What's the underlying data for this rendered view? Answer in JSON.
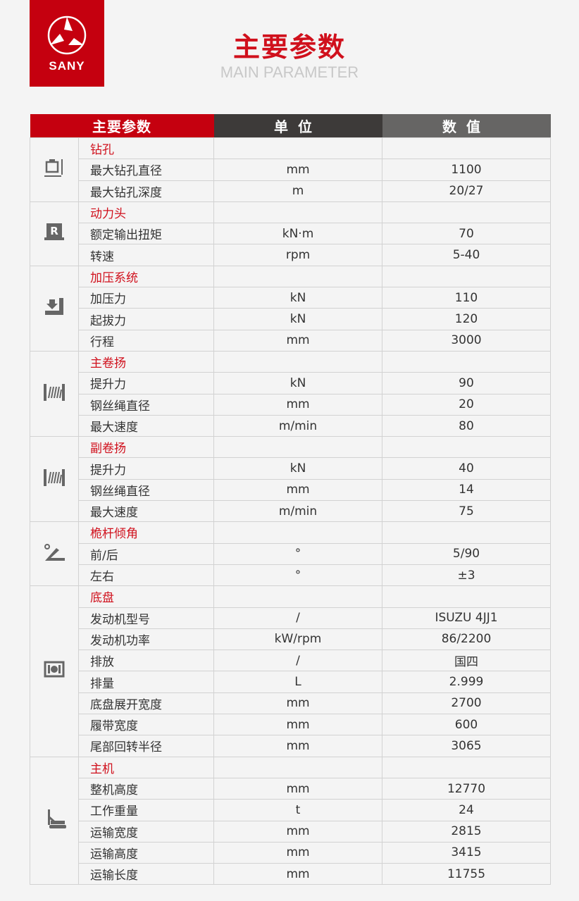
{
  "logo": {
    "brand": "SANY"
  },
  "header": {
    "title": "主要参数",
    "subtitle": "MAIN PARAMETER"
  },
  "table": {
    "columns": [
      "主要参数",
      "单位",
      "数值"
    ],
    "groups": [
      {
        "title": "钻孔",
        "icon": "drill-hole-icon",
        "rows": [
          [
            "最大钻孔直径",
            "mm",
            "1100"
          ],
          [
            "最大钻孔深度",
            "m",
            "20/27"
          ]
        ]
      },
      {
        "title": "动力头",
        "icon": "power-head-icon",
        "rows": [
          [
            "额定输出扭矩",
            "kN·m",
            "70"
          ],
          [
            "转速",
            "rpm",
            "5-40"
          ]
        ]
      },
      {
        "title": "加压系统",
        "icon": "pressure-system-icon",
        "rows": [
          [
            "加压力",
            "kN",
            "110"
          ],
          [
            "起拔力",
            "kN",
            "120"
          ],
          [
            "行程",
            "mm",
            "3000"
          ]
        ]
      },
      {
        "title": "主卷扬",
        "icon": "winch-icon",
        "rows": [
          [
            "提升力",
            "kN",
            "90"
          ],
          [
            "钢丝绳直径",
            "mm",
            "20"
          ],
          [
            "最大速度",
            "m/min",
            "80"
          ]
        ]
      },
      {
        "title": "副卷扬",
        "icon": "winch-icon",
        "rows": [
          [
            "提升力",
            "kN",
            "40"
          ],
          [
            "钢丝绳直径",
            "mm",
            "14"
          ],
          [
            "最大速度",
            "m/min",
            "75"
          ]
        ]
      },
      {
        "title": "桅杆倾角",
        "icon": "mast-angle-icon",
        "rows": [
          [
            "前/后",
            "°",
            "5/90"
          ],
          [
            "左右",
            "°",
            "±3"
          ]
        ]
      },
      {
        "title": "底盘",
        "icon": "engine-icon",
        "rows": [
          [
            "发动机型号",
            "/",
            "ISUZU 4JJ1"
          ],
          [
            "发动机功率",
            "kW/rpm",
            "86/2200"
          ],
          [
            "排放",
            "/",
            "国四"
          ],
          [
            "排量",
            "L",
            "2.999"
          ],
          [
            "底盘展开宽度",
            "mm",
            "2700"
          ],
          [
            "履带宽度",
            "mm",
            "600"
          ],
          [
            "尾部回转半径",
            "mm",
            "3065"
          ]
        ]
      },
      {
        "title": "主机",
        "icon": "drilling-rig-icon",
        "rows": [
          [
            "整机高度",
            "mm",
            "12770"
          ],
          [
            "工作重量",
            "t",
            "24"
          ],
          [
            "运输宽度",
            "mm",
            "2815"
          ],
          [
            "运输高度",
            "mm",
            "3415"
          ],
          [
            "运输长度",
            "mm",
            "11755"
          ]
        ]
      }
    ]
  }
}
